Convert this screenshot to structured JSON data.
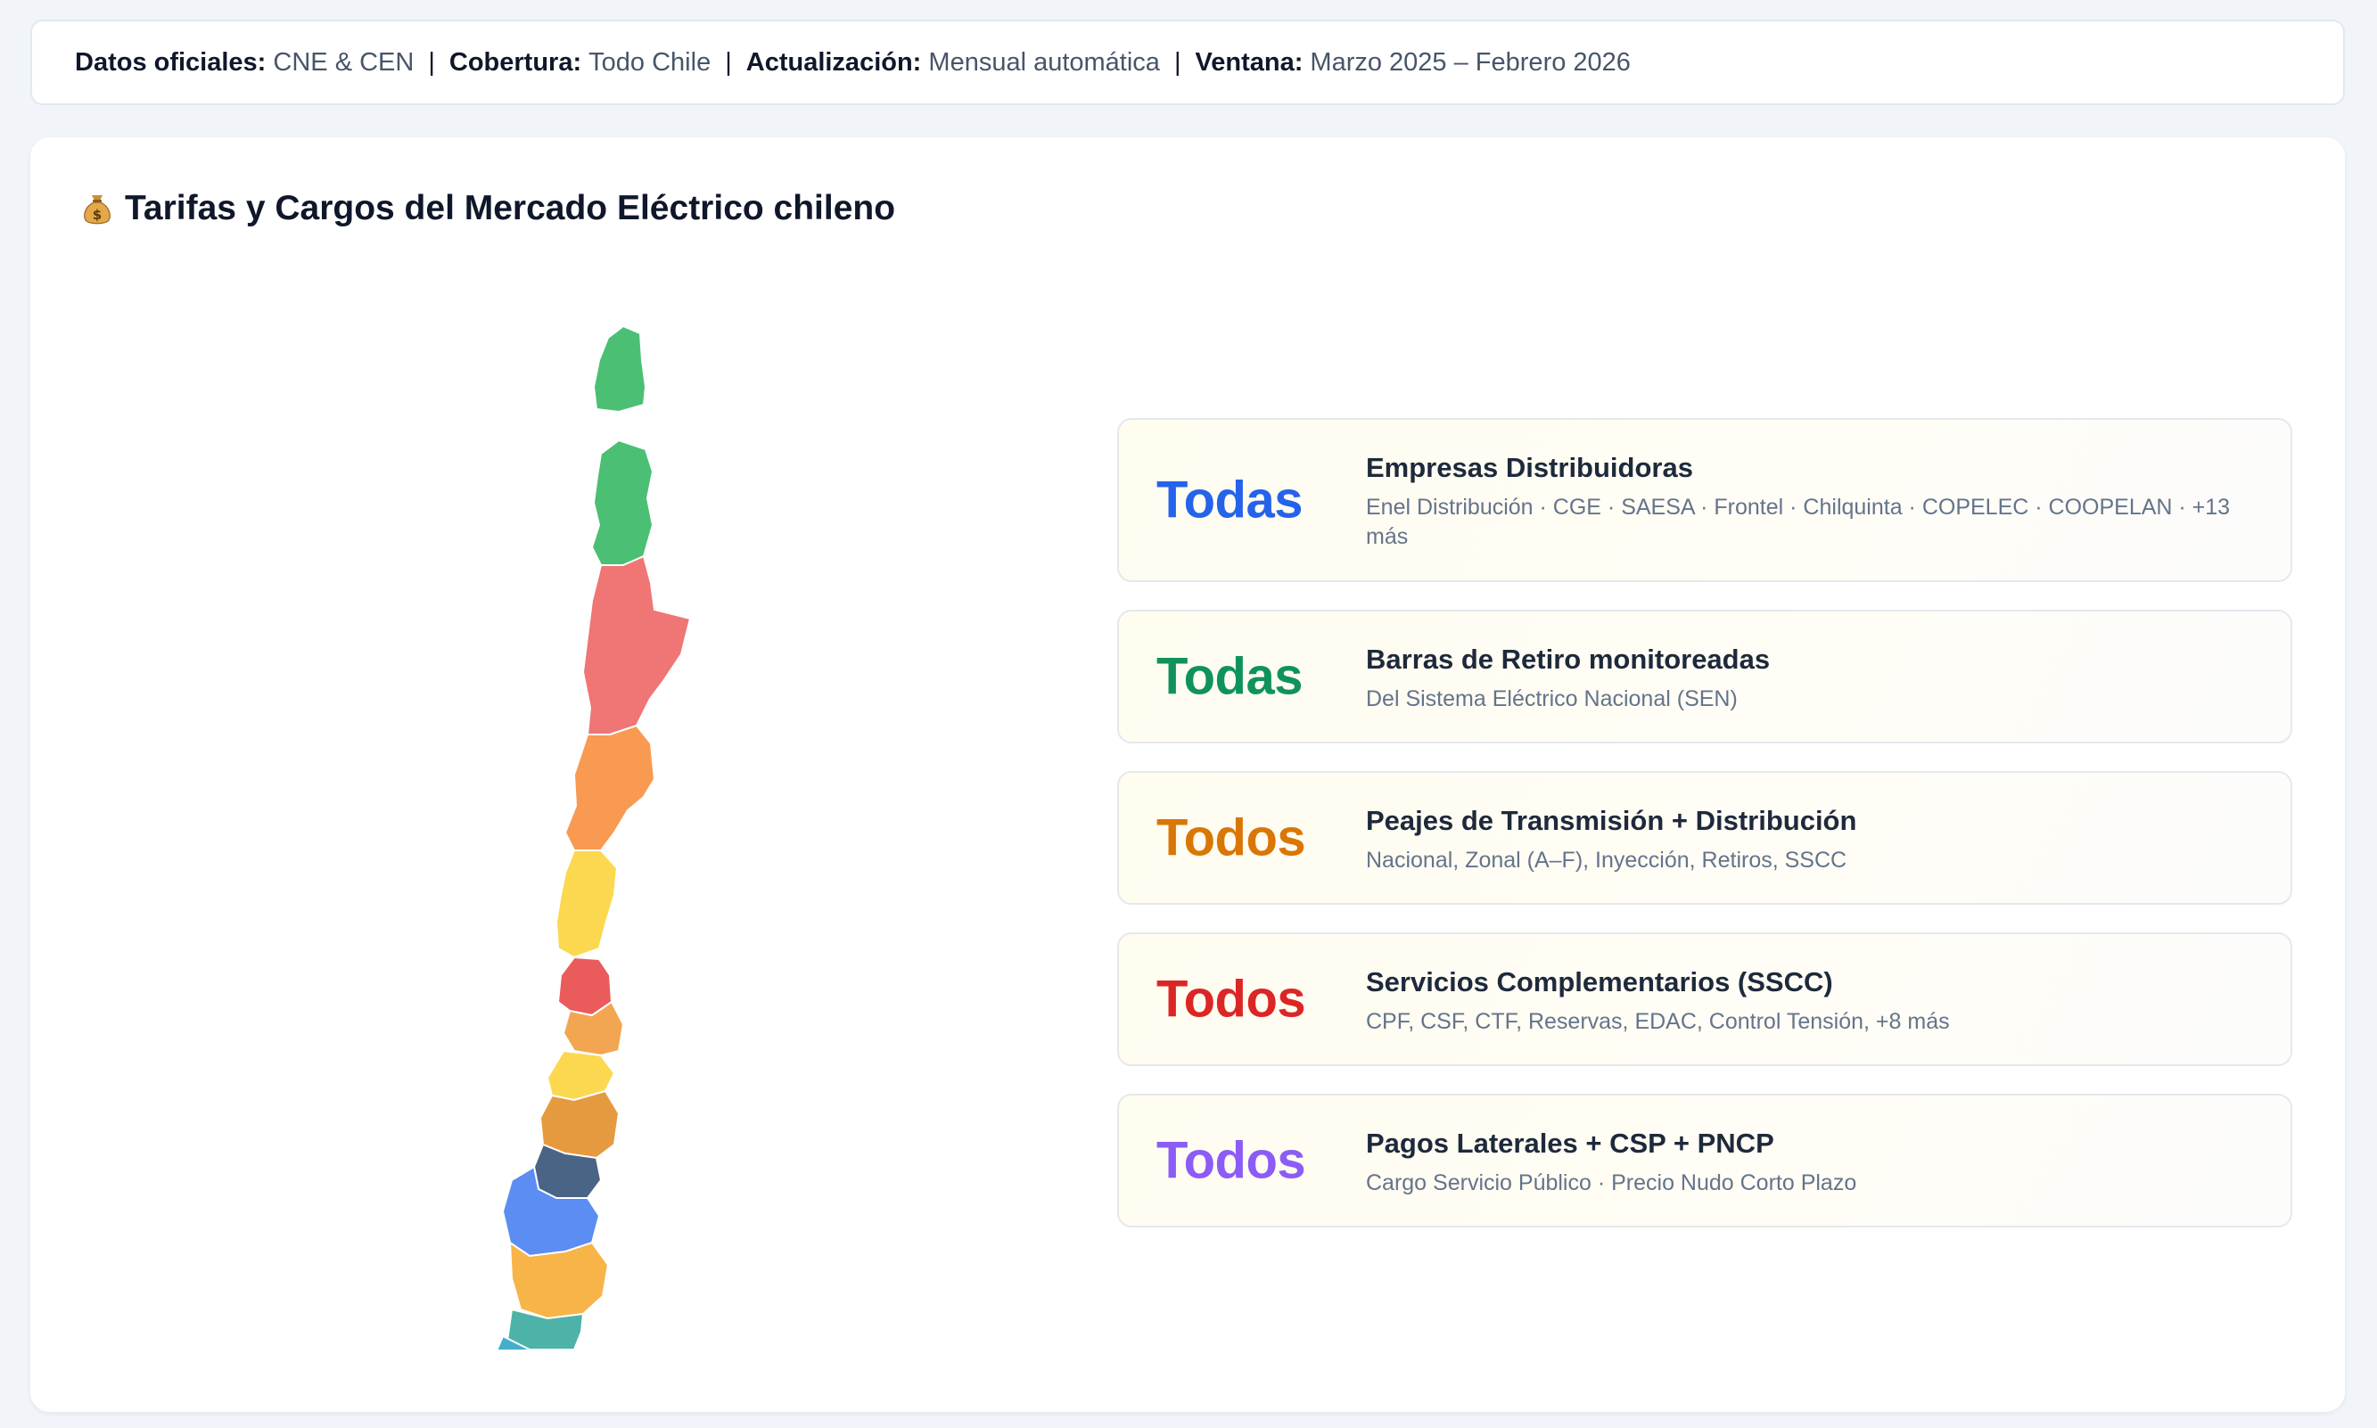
{
  "info_bar": {
    "datos_label": "Datos oficiales:",
    "datos_value": "CNE & CEN",
    "cobertura_label": "Cobertura:",
    "cobertura_value": "Todo Chile",
    "actualizacion_label": "Actualización:",
    "actualizacion_value": "Mensual automática",
    "ventana_label": "Ventana:",
    "ventana_value": "Marzo 2025 – Febrero 2026",
    "separator": "|"
  },
  "section": {
    "title": "Tarifas y Cargos del Mercado Eléctrico chileno",
    "icon": "money-bag-icon"
  },
  "map": {
    "icon": "chile-regions-map",
    "region_colors": [
      "#4bbf73",
      "#f07575",
      "#f99a52",
      "#fbd84f",
      "#ea5b5b",
      "#f3a652",
      "#e69a40",
      "#4a6485",
      "#5b8df2",
      "#f7b448",
      "#4db3a8",
      "#44aecb"
    ]
  },
  "stats": [
    {
      "value": "Todas",
      "color": "#2563eb",
      "title": "Empresas Distribuidoras",
      "subtitle": "Enel Distribución · CGE · SAESA · Frontel · Chilquinta · COPELEC · COOPELAN · +13 más"
    },
    {
      "value": "Todas",
      "color": "#10935b",
      "title": "Barras de Retiro monitoreadas",
      "subtitle": "Del Sistema Eléctrico Nacional (SEN)"
    },
    {
      "value": "Todos",
      "color": "#d97706",
      "title": "Peajes de Transmisión + Distribución",
      "subtitle": "Nacional, Zonal (A–F), Inyección, Retiros, SSCC"
    },
    {
      "value": "Todos",
      "color": "#dc2626",
      "title": "Servicios Complementarios (SSCC)",
      "subtitle": "CPF, CSF, CTF, Reservas, EDAC, Control Tensión, +8 más"
    },
    {
      "value": "Todos",
      "color": "#8b5cf6",
      "title": "Pagos Laterales + CSP + PNCP",
      "subtitle": "Cargo Servicio Público · Precio Nudo Corto Plazo"
    }
  ]
}
